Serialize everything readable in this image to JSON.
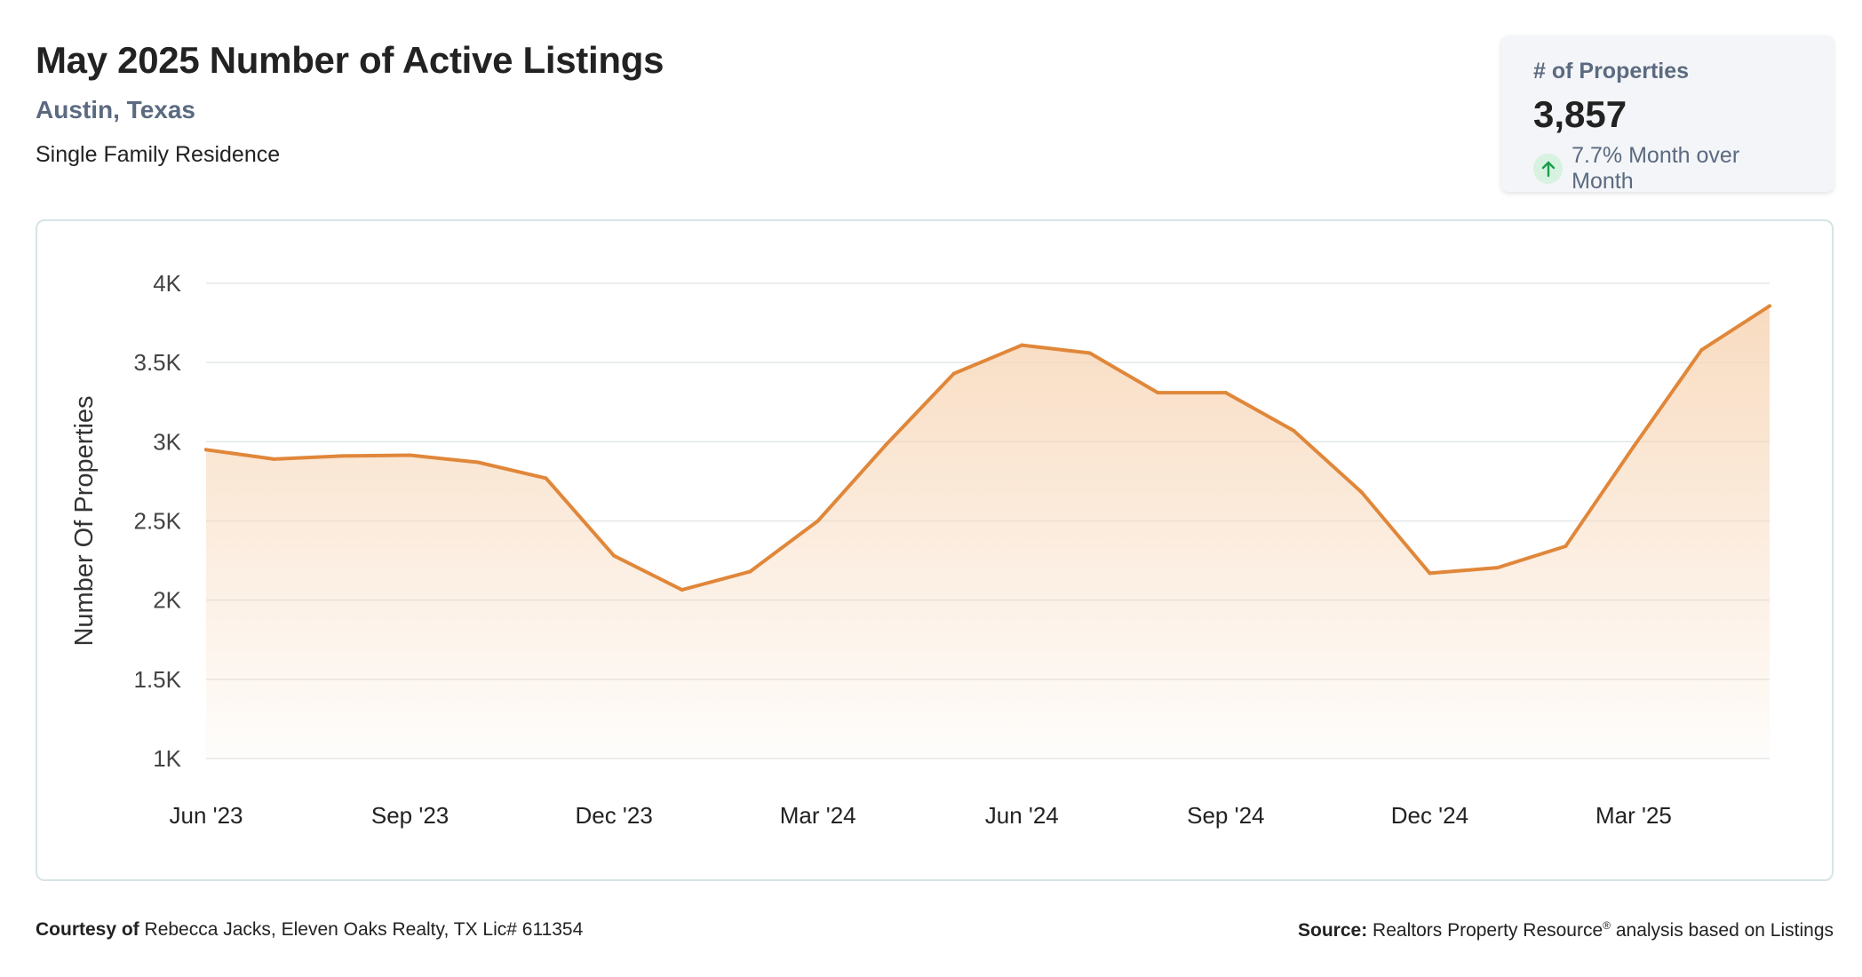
{
  "header": {
    "title": "May 2025 Number of Active Listings",
    "location": "Austin, Texas",
    "property_type": "Single Family Residence"
  },
  "stat_card": {
    "label": "# of Properties",
    "value": "3,857",
    "change": "7.7% Month over Month",
    "icon": "up-arrow-icon",
    "change_color": "#1a9e4b"
  },
  "footer": {
    "courtesy_label": "Courtesy of",
    "courtesy_text": "Rebecca Jacks, Eleven Oaks Realty, TX Lic# 611354",
    "source_label": "Source:",
    "source_name": "Realtors Property Resource",
    "source_mark": "®",
    "source_text": "analysis based on Listings"
  },
  "chart_data": {
    "type": "area",
    "ylabel": "Number Of Properties",
    "ylim": [
      1000,
      4000
    ],
    "yticks": [
      1000,
      1500,
      2000,
      2500,
      3000,
      3500,
      4000
    ],
    "ytick_labels": [
      "1K",
      "1.5K",
      "2K",
      "2.5K",
      "3K",
      "3.5K",
      "4K"
    ],
    "x": [
      "2023-06",
      "2023-07",
      "2023-08",
      "2023-09",
      "2023-10",
      "2023-11",
      "2023-12",
      "2024-01",
      "2024-02",
      "2024-03",
      "2024-04",
      "2024-05",
      "2024-06",
      "2024-07",
      "2024-08",
      "2024-09",
      "2024-10",
      "2024-11",
      "2024-12",
      "2025-01",
      "2025-02",
      "2025-03",
      "2025-04",
      "2025-05"
    ],
    "xtick_labels": [
      "Jun '23",
      "Sep '23",
      "Dec '23",
      "Mar '24",
      "Jun '24",
      "Sep '24",
      "Dec '24",
      "Mar '25"
    ],
    "xtick_positions": [
      "2023-06",
      "2023-09",
      "2023-12",
      "2024-03",
      "2024-06",
      "2024-09",
      "2024-12",
      "2025-03"
    ],
    "values": [
      2950,
      2890,
      2910,
      2915,
      2870,
      2770,
      2280,
      2065,
      2180,
      2500,
      2980,
      3430,
      3610,
      3560,
      3310,
      3310,
      3070,
      2680,
      2170,
      2205,
      2340,
      2970,
      3580,
      3857
    ],
    "grid": true,
    "line_color": "#e0873a",
    "fill_color": "#f7d5b5",
    "legend": "none"
  }
}
